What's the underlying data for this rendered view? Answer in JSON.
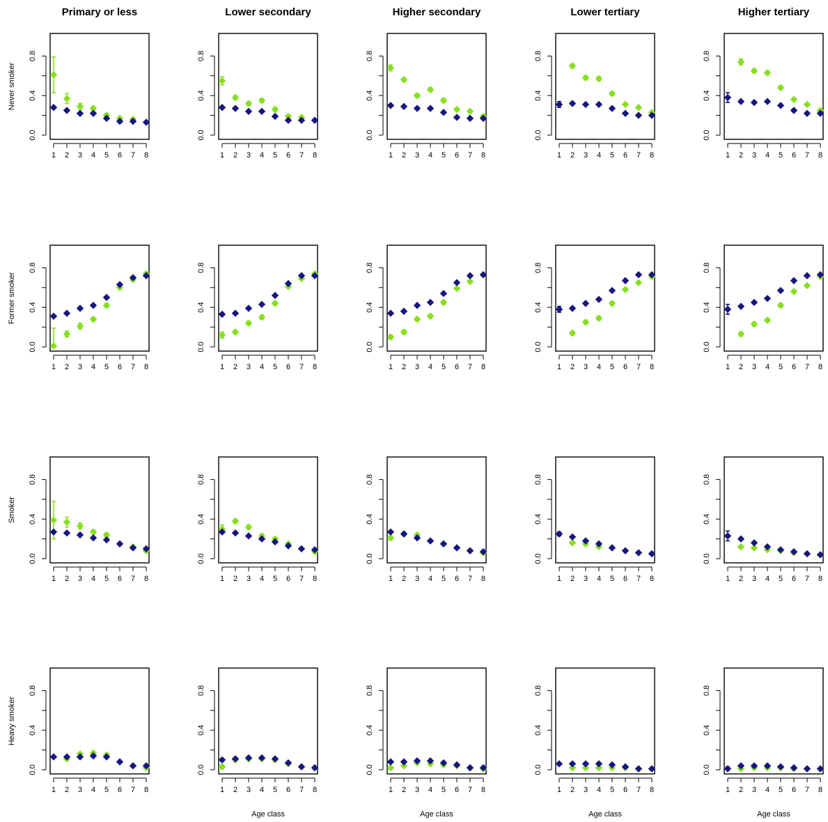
{
  "colors": {
    "series_a": "#86e01e",
    "series_b": "#16167e",
    "frame": "#000000"
  },
  "chart_data": {
    "type": "scatter",
    "layout": "small-multiples grid, 4 rows x 5 columns",
    "columns": [
      "Primary or less",
      "Lower secondary",
      "Higher secondary",
      "Lower tertiary",
      "Higher tertiary"
    ],
    "rows": [
      "Never smoker",
      "Former smoker",
      "Smoker",
      "Heavy smoker"
    ],
    "xlabel": "Age class",
    "x": [
      1,
      2,
      3,
      4,
      5,
      6,
      7,
      8
    ],
    "xticks": [
      "1",
      "2",
      "3",
      "4",
      "5",
      "6",
      "7",
      "8"
    ],
    "ylim": [
      0,
      1
    ],
    "yticks": [
      "0.0",
      "0.4",
      "0.8"
    ],
    "grid": false,
    "series_colors": [
      "#86e01e",
      "#16167e"
    ],
    "panels": [
      [
        {
          "green": [
            0.61,
            0.37,
            0.29,
            0.27,
            0.2,
            0.17,
            0.16,
            null
          ],
          "green_err": [
            0.18,
            0.05,
            0.03,
            0.02,
            0.02,
            0.01,
            0.01,
            null
          ],
          "blue": [
            0.28,
            0.25,
            0.22,
            0.22,
            0.17,
            0.14,
            0.14,
            0.13
          ]
        },
        {
          "green": [
            0.55,
            0.38,
            0.32,
            0.35,
            0.26,
            0.19,
            0.18,
            null
          ],
          "green_err": [
            0.04,
            0.02,
            0.02,
            0.02,
            0.02,
            0.01,
            0.01,
            null
          ],
          "blue": [
            0.28,
            0.27,
            0.24,
            0.24,
            0.19,
            0.15,
            0.15,
            0.15
          ]
        },
        {
          "green": [
            0.68,
            0.56,
            0.4,
            0.46,
            0.35,
            0.26,
            0.24,
            0.19
          ],
          "green_err": [
            0.03,
            0.02,
            0.02,
            0.02,
            0.02,
            0.01,
            0.01,
            0.01
          ],
          "blue": [
            0.3,
            0.29,
            0.27,
            0.27,
            0.23,
            0.18,
            0.17,
            0.17
          ]
        },
        {
          "green": [
            null,
            0.7,
            0.58,
            0.57,
            0.42,
            0.31,
            0.28,
            0.23
          ],
          "green_err": [
            null,
            0.02,
            0.02,
            0.02,
            0.02,
            0.01,
            0.01,
            0.01
          ],
          "blue": [
            0.31,
            0.32,
            0.31,
            0.31,
            0.27,
            0.22,
            0.2,
            0.2
          ],
          "blue_err": [
            0.03,
            0,
            0,
            0,
            0,
            0,
            0,
            0
          ]
        },
        {
          "green": [
            null,
            0.74,
            0.65,
            0.63,
            0.48,
            0.36,
            0.31,
            0.25
          ],
          "green_err": [
            null,
            0.03,
            0.02,
            0.02,
            0.02,
            0.01,
            0.01,
            0.01
          ],
          "blue": [
            0.38,
            0.34,
            0.33,
            0.34,
            0.3,
            0.25,
            0.22,
            0.22
          ],
          "blue_err": [
            0.05,
            0,
            0,
            0,
            0,
            0,
            0,
            0
          ]
        }
      ],
      [
        {
          "green": [
            0.01,
            0.13,
            0.21,
            0.28,
            0.42,
            0.6,
            0.68,
            0.74
          ],
          "green_err": [
            0.18,
            0.03,
            0.03,
            0.02,
            0.02,
            0.01,
            0.01,
            0.01
          ],
          "blue": [
            0.31,
            0.34,
            0.39,
            0.42,
            0.5,
            0.63,
            0.7,
            0.72
          ]
        },
        {
          "green": [
            0.12,
            0.15,
            0.24,
            0.3,
            0.44,
            0.61,
            0.69,
            0.74
          ],
          "green_err": [
            0.03,
            0.02,
            0.02,
            0.02,
            0.02,
            0.01,
            0.01,
            0.01
          ],
          "blue": [
            0.33,
            0.34,
            0.39,
            0.43,
            0.52,
            0.64,
            0.72,
            0.72
          ]
        },
        {
          "green": [
            0.1,
            0.15,
            0.28,
            0.31,
            0.45,
            0.59,
            0.66,
            0.73
          ],
          "green_err": [
            0.02,
            0.02,
            0.02,
            0.02,
            0.02,
            0.01,
            0.01,
            0.01
          ],
          "blue": [
            0.34,
            0.36,
            0.42,
            0.45,
            0.54,
            0.65,
            0.72,
            0.73
          ]
        },
        {
          "green": [
            null,
            0.14,
            0.25,
            0.29,
            0.44,
            0.58,
            0.65,
            0.71
          ],
          "green_err": [
            null,
            0.02,
            0.02,
            0.02,
            0.02,
            0.01,
            0.01,
            0.01
          ],
          "blue": [
            0.38,
            0.39,
            0.44,
            0.48,
            0.57,
            0.67,
            0.73,
            0.73
          ],
          "blue_err": [
            0.03,
            0,
            0,
            0,
            0,
            0,
            0,
            0
          ]
        },
        {
          "green": [
            null,
            0.13,
            0.23,
            0.27,
            0.42,
            0.56,
            0.62,
            0.71
          ],
          "green_err": [
            null,
            0.02,
            0.02,
            0.02,
            0.02,
            0.01,
            0.01,
            0.01
          ],
          "blue": [
            0.38,
            0.41,
            0.45,
            0.49,
            0.57,
            0.67,
            0.72,
            0.73
          ],
          "blue_err": [
            0.05,
            0,
            0,
            0,
            0,
            0,
            0,
            0
          ]
        }
      ],
      [
        {
          "green": [
            0.39,
            0.37,
            0.33,
            0.27,
            0.24,
            0.15,
            0.12,
            0.08
          ],
          "green_err": [
            0.19,
            0.05,
            0.03,
            0.02,
            0.02,
            0.01,
            0.01,
            0.01
          ],
          "blue": [
            0.27,
            0.26,
            0.24,
            0.21,
            0.19,
            0.15,
            0.11,
            0.1
          ]
        },
        {
          "green": [
            0.3,
            0.38,
            0.32,
            0.23,
            0.2,
            0.15,
            0.1,
            0.07
          ],
          "green_err": [
            0.04,
            0.02,
            0.02,
            0.02,
            0.01,
            0.01,
            0.01,
            0.01
          ],
          "blue": [
            0.27,
            0.26,
            0.23,
            0.2,
            0.17,
            0.13,
            0.1,
            0.09
          ]
        },
        {
          "green": [
            0.21,
            0.25,
            0.24,
            0.18,
            0.15,
            0.11,
            0.08,
            0.06
          ],
          "green_err": [
            0.02,
            0.02,
            0.01,
            0.01,
            0.01,
            0.01,
            0.01,
            0.01
          ],
          "blue": [
            0.27,
            0.25,
            0.21,
            0.18,
            0.15,
            0.11,
            0.08,
            0.07
          ]
        },
        {
          "green": [
            null,
            0.16,
            0.15,
            0.12,
            0.11,
            0.08,
            0.06,
            0.05
          ],
          "green_err": [
            null,
            0.01,
            0.01,
            0.01,
            0.01,
            0.01,
            0.01,
            0.01
          ],
          "blue": [
            0.25,
            0.22,
            0.18,
            0.15,
            0.11,
            0.08,
            0.06,
            0.05
          ],
          "blue_err": [
            0.02,
            0,
            0,
            0,
            0,
            0,
            0,
            0
          ]
        },
        {
          "green": [
            null,
            0.12,
            0.11,
            0.09,
            0.08,
            0.06,
            0.05,
            0.04
          ],
          "green_err": [
            null,
            0.01,
            0.01,
            0.01,
            0.01,
            0.01,
            0.01,
            0.01
          ],
          "blue": [
            0.23,
            0.2,
            0.16,
            0.12,
            0.09,
            0.07,
            0.05,
            0.04
          ],
          "blue_err": [
            0.05,
            0,
            0,
            0,
            0,
            0,
            0,
            0
          ]
        }
      ],
      [
        {
          "green": [
            null,
            0.11,
            0.16,
            0.17,
            0.15,
            0.08,
            0.04,
            0.02
          ],
          "green_err": [
            null,
            0.01,
            0.01,
            0.01,
            0.01,
            0.01,
            0.01,
            0.01
          ],
          "blue": [
            0.13,
            0.13,
            0.13,
            0.14,
            0.13,
            0.08,
            0.04,
            0.04
          ]
        },
        {
          "green": [
            0.03,
            0.1,
            0.11,
            0.11,
            0.1,
            0.06,
            0.03,
            0.02
          ],
          "green_err": [
            0.02,
            0.01,
            0.01,
            0.01,
            0.01,
            0.01,
            0.01,
            0.01
          ],
          "blue": [
            0.1,
            0.11,
            0.12,
            0.12,
            0.11,
            0.07,
            0.03,
            0.02
          ]
        },
        {
          "green": [
            0.02,
            0.04,
            0.07,
            0.06,
            0.05,
            0.04,
            0.02,
            0.01
          ],
          "green_err": [
            0.01,
            0.01,
            0.01,
            0.01,
            0.01,
            0.01,
            0.01,
            0.01
          ],
          "blue": [
            0.08,
            0.08,
            0.09,
            0.09,
            0.07,
            0.05,
            0.02,
            0.02
          ]
        },
        {
          "green": [
            null,
            0.02,
            0.02,
            0.02,
            0.02,
            0.02,
            0.01,
            0.01
          ],
          "green_err": [
            null,
            0.01,
            0.01,
            0.01,
            0.01,
            0.01,
            0.01,
            0.01
          ],
          "blue": [
            0.06,
            0.06,
            0.06,
            0.06,
            0.05,
            0.03,
            0.01,
            0.01
          ]
        },
        {
          "green": [
            null,
            0.01,
            0.02,
            0.02,
            0.02,
            0.01,
            0.01,
            0.01
          ],
          "green_err": [
            null,
            0.01,
            0.01,
            0.01,
            0.01,
            0.01,
            0.01,
            0.01
          ],
          "blue": [
            0.01,
            0.04,
            0.04,
            0.04,
            0.03,
            0.02,
            0.01,
            0.01
          ],
          "blue_err": [
            0.02,
            0,
            0,
            0,
            0,
            0,
            0,
            0
          ]
        }
      ]
    ]
  }
}
